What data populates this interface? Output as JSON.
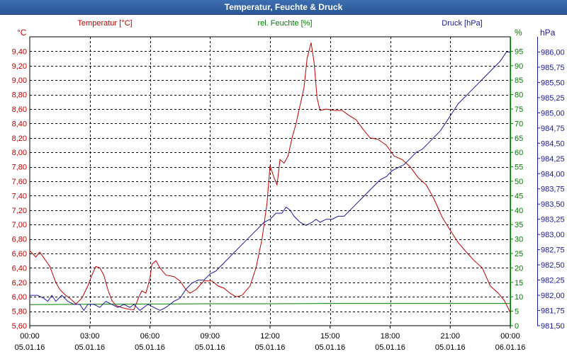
{
  "chart_data": {
    "type": "line",
    "title": "Temperatur, Feuchte & Druck",
    "x_labels": [
      {
        "time": "00:00",
        "date": "05.01.16"
      },
      {
        "time": "03:00",
        "date": "05.01.16"
      },
      {
        "time": "06:00",
        "date": "05.01.16"
      },
      {
        "time": "09:00",
        "date": "05.01.16"
      },
      {
        "time": "12:00",
        "date": "05.01.16"
      },
      {
        "time": "15:00",
        "date": "05.01.16"
      },
      {
        "time": "18:00",
        "date": "05.01.16"
      },
      {
        "time": "21:00",
        "date": "05.01.16"
      },
      {
        "time": "00:00",
        "date": "06.01.16"
      }
    ],
    "xlim": [
      0,
      24
    ],
    "axes": {
      "temperature": {
        "unit": "°C",
        "legend": "Temperatur [°C]",
        "color": "#c00000",
        "ylim": [
          5.6,
          9.6
        ],
        "ticks": [
          "5,60",
          "5,80",
          "6,00",
          "6,20",
          "6,40",
          "6,60",
          "6,80",
          "7,00",
          "7,20",
          "7,40",
          "7,60",
          "7,80",
          "8,00",
          "8,20",
          "8,40",
          "8,60",
          "8,80",
          "9,00",
          "9,20",
          "9,40"
        ]
      },
      "humidity": {
        "unit": "%",
        "legend": "rel. Feuchte [%]",
        "color": "#008000",
        "ylim": [
          0,
          100
        ],
        "ticks": [
          "0",
          "5",
          "10",
          "15",
          "20",
          "25",
          "30",
          "35",
          "40",
          "45",
          "50",
          "55",
          "60",
          "65",
          "70",
          "75",
          "80",
          "85",
          "90",
          "95"
        ]
      },
      "pressure": {
        "unit": "hPa",
        "legend": "Druck [hPa]",
        "color": "#1a1aa0",
        "ylim": [
          981.5,
          986.25
        ],
        "ticks": [
          "981,50",
          "981,75",
          "982,00",
          "982,25",
          "982,50",
          "982,75",
          "983,00",
          "983,25",
          "983,50",
          "983,75",
          "984,00",
          "984,25",
          "984,50",
          "984,75",
          "985,00",
          "985,25",
          "985,50",
          "985,75",
          "986,00"
        ]
      }
    },
    "series": [
      {
        "name": "Temperatur",
        "axis": "temperature",
        "color": "#c00000",
        "points": [
          [
            0,
            6.64
          ],
          [
            0.3,
            6.55
          ],
          [
            0.5,
            6.62
          ],
          [
            0.8,
            6.5
          ],
          [
            1.0,
            6.42
          ],
          [
            1.3,
            6.2
          ],
          [
            1.5,
            6.1
          ],
          [
            1.8,
            6.02
          ],
          [
            2.0,
            5.98
          ],
          [
            2.3,
            5.9
          ],
          [
            2.6,
            5.98
          ],
          [
            2.9,
            6.15
          ],
          [
            3.1,
            6.3
          ],
          [
            3.3,
            6.42
          ],
          [
            3.5,
            6.4
          ],
          [
            3.7,
            6.3
          ],
          [
            3.9,
            6.1
          ],
          [
            4.1,
            5.95
          ],
          [
            4.3,
            5.88
          ],
          [
            4.6,
            5.85
          ],
          [
            4.9,
            5.83
          ],
          [
            5.2,
            5.82
          ],
          [
            5.45,
            6.0
          ],
          [
            5.6,
            6.08
          ],
          [
            5.8,
            6.05
          ],
          [
            6.0,
            6.25
          ],
          [
            6.1,
            6.45
          ],
          [
            6.3,
            6.5
          ],
          [
            6.5,
            6.4
          ],
          [
            6.8,
            6.3
          ],
          [
            7.2,
            6.28
          ],
          [
            7.5,
            6.22
          ],
          [
            7.8,
            6.1
          ],
          [
            8.0,
            6.05
          ],
          [
            8.3,
            6.1
          ],
          [
            8.7,
            6.22
          ],
          [
            9.1,
            6.22
          ],
          [
            9.4,
            6.15
          ],
          [
            9.7,
            6.12
          ],
          [
            10.0,
            6.05
          ],
          [
            10.3,
            6.0
          ],
          [
            10.6,
            6.02
          ],
          [
            11.0,
            6.15
          ],
          [
            11.3,
            6.4
          ],
          [
            11.6,
            6.8
          ],
          [
            11.85,
            7.3
          ],
          [
            12.0,
            7.82
          ],
          [
            12.2,
            7.65
          ],
          [
            12.35,
            7.55
          ],
          [
            12.5,
            7.9
          ],
          [
            12.7,
            7.85
          ],
          [
            12.9,
            7.95
          ],
          [
            13.1,
            8.2
          ],
          [
            13.3,
            8.4
          ],
          [
            13.5,
            8.65
          ],
          [
            13.7,
            8.9
          ],
          [
            13.85,
            9.3
          ],
          [
            14.05,
            9.52
          ],
          [
            14.2,
            9.25
          ],
          [
            14.35,
            8.75
          ],
          [
            14.5,
            8.58
          ],
          [
            14.8,
            8.6
          ],
          [
            15.2,
            8.58
          ],
          [
            15.6,
            8.58
          ],
          [
            15.9,
            8.52
          ],
          [
            16.3,
            8.45
          ],
          [
            16.7,
            8.3
          ],
          [
            17.0,
            8.2
          ],
          [
            17.4,
            8.18
          ],
          [
            17.8,
            8.1
          ],
          [
            18.2,
            7.95
          ],
          [
            18.6,
            7.9
          ],
          [
            19.0,
            7.8
          ],
          [
            19.4,
            7.65
          ],
          [
            19.8,
            7.55
          ],
          [
            20.2,
            7.35
          ],
          [
            20.6,
            7.1
          ],
          [
            21.0,
            6.92
          ],
          [
            21.4,
            6.75
          ],
          [
            21.8,
            6.62
          ],
          [
            22.2,
            6.5
          ],
          [
            22.6,
            6.4
          ],
          [
            23.0,
            6.15
          ],
          [
            23.4,
            6.05
          ],
          [
            23.7,
            5.95
          ],
          [
            24.0,
            5.78
          ]
        ]
      },
      {
        "name": "rel. Feuchte",
        "axis": "humidity",
        "color": "#008000",
        "points": [
          [
            0,
            7.3
          ],
          [
            3,
            7.4
          ],
          [
            6,
            7.5
          ],
          [
            9,
            7.6
          ],
          [
            12,
            7.6
          ],
          [
            15,
            7.7
          ],
          [
            18,
            7.7
          ],
          [
            21,
            7.7
          ],
          [
            24,
            7.7
          ]
        ]
      },
      {
        "name": "Druck",
        "axis": "pressure",
        "color": "#1a1aa0",
        "points": [
          [
            0,
            982.0
          ],
          [
            0.4,
            982.0
          ],
          [
            0.7,
            981.95
          ],
          [
            0.9,
            981.9
          ],
          [
            1.1,
            982.0
          ],
          [
            1.3,
            981.9
          ],
          [
            1.6,
            982.0
          ],
          [
            1.9,
            981.9
          ],
          [
            2.2,
            981.85
          ],
          [
            2.5,
            981.85
          ],
          [
            2.7,
            981.75
          ],
          [
            2.9,
            981.85
          ],
          [
            3.2,
            981.85
          ],
          [
            3.5,
            981.8
          ],
          [
            3.8,
            981.9
          ],
          [
            4.1,
            981.85
          ],
          [
            4.4,
            981.8
          ],
          [
            4.7,
            981.85
          ],
          [
            5.0,
            981.8
          ],
          [
            5.2,
            981.85
          ],
          [
            5.5,
            981.75
          ],
          [
            5.7,
            981.8
          ],
          [
            5.9,
            981.85
          ],
          [
            6.2,
            981.8
          ],
          [
            6.5,
            981.75
          ],
          [
            6.8,
            981.8
          ],
          [
            7.0,
            981.85
          ],
          [
            7.2,
            981.9
          ],
          [
            7.5,
            981.95
          ],
          [
            7.8,
            982.1
          ],
          [
            8.1,
            982.2
          ],
          [
            8.4,
            982.25
          ],
          [
            8.7,
            982.25
          ],
          [
            9.0,
            982.35
          ],
          [
            9.3,
            982.4
          ],
          [
            9.6,
            982.5
          ],
          [
            9.9,
            982.6
          ],
          [
            10.2,
            982.7
          ],
          [
            10.5,
            982.8
          ],
          [
            10.8,
            982.9
          ],
          [
            11.1,
            983.0
          ],
          [
            11.4,
            983.1
          ],
          [
            11.7,
            983.2
          ],
          [
            12.0,
            983.25
          ],
          [
            12.3,
            983.35
          ],
          [
            12.6,
            983.35
          ],
          [
            12.8,
            983.45
          ],
          [
            13.0,
            983.4
          ],
          [
            13.2,
            983.3
          ],
          [
            13.5,
            983.2
          ],
          [
            13.8,
            983.15
          ],
          [
            14.1,
            983.2
          ],
          [
            14.3,
            983.25
          ],
          [
            14.5,
            983.2
          ],
          [
            14.8,
            983.25
          ],
          [
            15.1,
            983.25
          ],
          [
            15.4,
            983.3
          ],
          [
            15.7,
            983.3
          ],
          [
            16.0,
            983.4
          ],
          [
            16.3,
            983.5
          ],
          [
            16.6,
            983.6
          ],
          [
            16.9,
            983.7
          ],
          [
            17.2,
            983.8
          ],
          [
            17.5,
            983.9
          ],
          [
            17.8,
            983.95
          ],
          [
            18.1,
            984.05
          ],
          [
            18.4,
            984.1
          ],
          [
            18.7,
            984.15
          ],
          [
            19.0,
            984.25
          ],
          [
            19.3,
            984.35
          ],
          [
            19.6,
            984.4
          ],
          [
            19.9,
            984.5
          ],
          [
            20.2,
            984.6
          ],
          [
            20.5,
            984.7
          ],
          [
            20.8,
            984.85
          ],
          [
            21.1,
            985.0
          ],
          [
            21.4,
            985.15
          ],
          [
            21.7,
            985.25
          ],
          [
            22.0,
            985.35
          ],
          [
            22.3,
            985.45
          ],
          [
            22.6,
            985.55
          ],
          [
            22.9,
            985.65
          ],
          [
            23.2,
            985.75
          ],
          [
            23.5,
            985.85
          ],
          [
            23.8,
            986.0
          ],
          [
            24.0,
            986.0
          ]
        ]
      }
    ]
  }
}
